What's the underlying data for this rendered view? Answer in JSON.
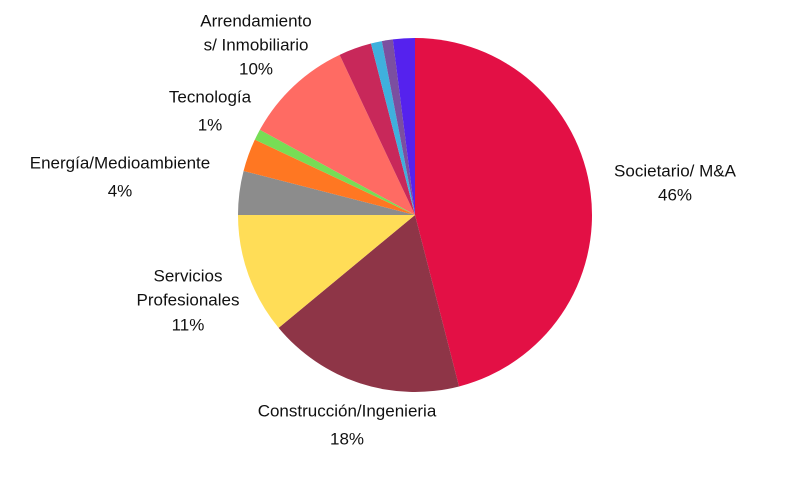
{
  "chart_data": {
    "type": "pie",
    "categories": [
      [
        "Societario/ M&A"
      ],
      [
        "Construcción/Ingenieria"
      ],
      [
        "Servicios",
        "Profesionales"
      ],
      [
        "Energía/Medioambiente"
      ],
      null,
      [
        "Tecnología"
      ],
      [
        "Arrendamiento",
        "s/ Inmobiliario"
      ],
      null,
      null,
      null,
      null
    ],
    "values": [
      46,
      18,
      11,
      4,
      3,
      1,
      10,
      3,
      1,
      1,
      2
    ],
    "value_labels": [
      "46%",
      "18%",
      "11%",
      "4%",
      null,
      "1%",
      "10%",
      null,
      null,
      null,
      null
    ],
    "colors": [
      "#e31045",
      "#8e3547",
      "#ffdd57",
      "#8c8c8c",
      "#ff7722",
      "#77dd55",
      "#ff6b63",
      "#c8285a",
      "#3fb0dd",
      "#7b4fa0",
      "#5522ee"
    ]
  }
}
